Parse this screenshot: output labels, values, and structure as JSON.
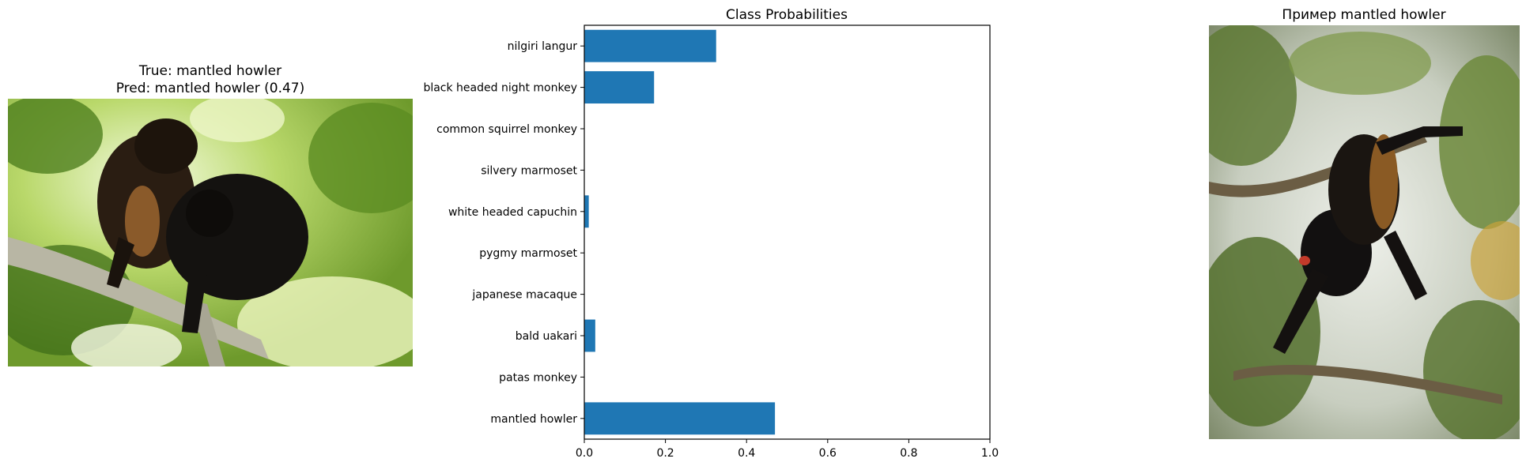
{
  "left_panel": {
    "title_line1": "True: mantled howler",
    "title_line2": "Pred: mantled howler (0.47)",
    "image_subject": "two-mantled-howler-monkeys-photo"
  },
  "right_panel": {
    "title": "Пример mantled howler",
    "image_subject": "mantled-howler-hanging-photo"
  },
  "chart_data": {
    "type": "bar",
    "orientation": "horizontal",
    "title": "Class Probabilities",
    "xlabel": "",
    "ylabel": "",
    "xlim": [
      0,
      1
    ],
    "xticks": [
      "0.0",
      "0.2",
      "0.4",
      "0.6",
      "0.8",
      "1.0"
    ],
    "categories": [
      "nilgiri langur",
      "black headed night monkey",
      "common squirrel monkey",
      "silvery marmoset",
      "white headed capuchin",
      "pygmy marmoset",
      "japanese macaque",
      "bald uakari",
      "patas monkey",
      "mantled howler"
    ],
    "values": [
      0.325,
      0.172,
      0.0,
      0.0,
      0.011,
      0.0,
      0.0,
      0.027,
      0.0,
      0.47
    ],
    "bar_color": "#1f77b4",
    "grid": false,
    "legend": "none"
  }
}
